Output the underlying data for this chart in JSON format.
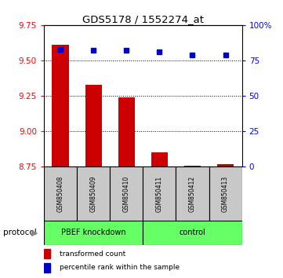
{
  "title": "GDS5178 / 1552274_at",
  "samples": [
    "GSM850408",
    "GSM850409",
    "GSM850410",
    "GSM850411",
    "GSM850412",
    "GSM850413"
  ],
  "red_values": [
    9.61,
    9.33,
    9.24,
    8.85,
    8.76,
    8.77
  ],
  "blue_values": [
    83,
    82,
    82,
    81,
    79,
    79
  ],
  "ylim_left": [
    8.75,
    9.75
  ],
  "ylim_right": [
    0,
    100
  ],
  "yticks_left": [
    8.75,
    9.0,
    9.25,
    9.5,
    9.75
  ],
  "yticks_right": [
    0,
    25,
    50,
    75,
    100
  ],
  "ytick_labels_right": [
    "0",
    "25",
    "50",
    "75",
    "100%"
  ],
  "grid_values": [
    9.0,
    9.25,
    9.5
  ],
  "bar_color": "#CC0000",
  "dot_color": "#0000CC",
  "background_color": "#ffffff",
  "group1_label": "PBEF knockdown",
  "group2_label": "control",
  "group_color": "#66FF66",
  "sample_box_color": "#C8C8C8",
  "protocol_label": "protocol",
  "legend_red": "transformed count",
  "legend_blue": "percentile rank within the sample"
}
